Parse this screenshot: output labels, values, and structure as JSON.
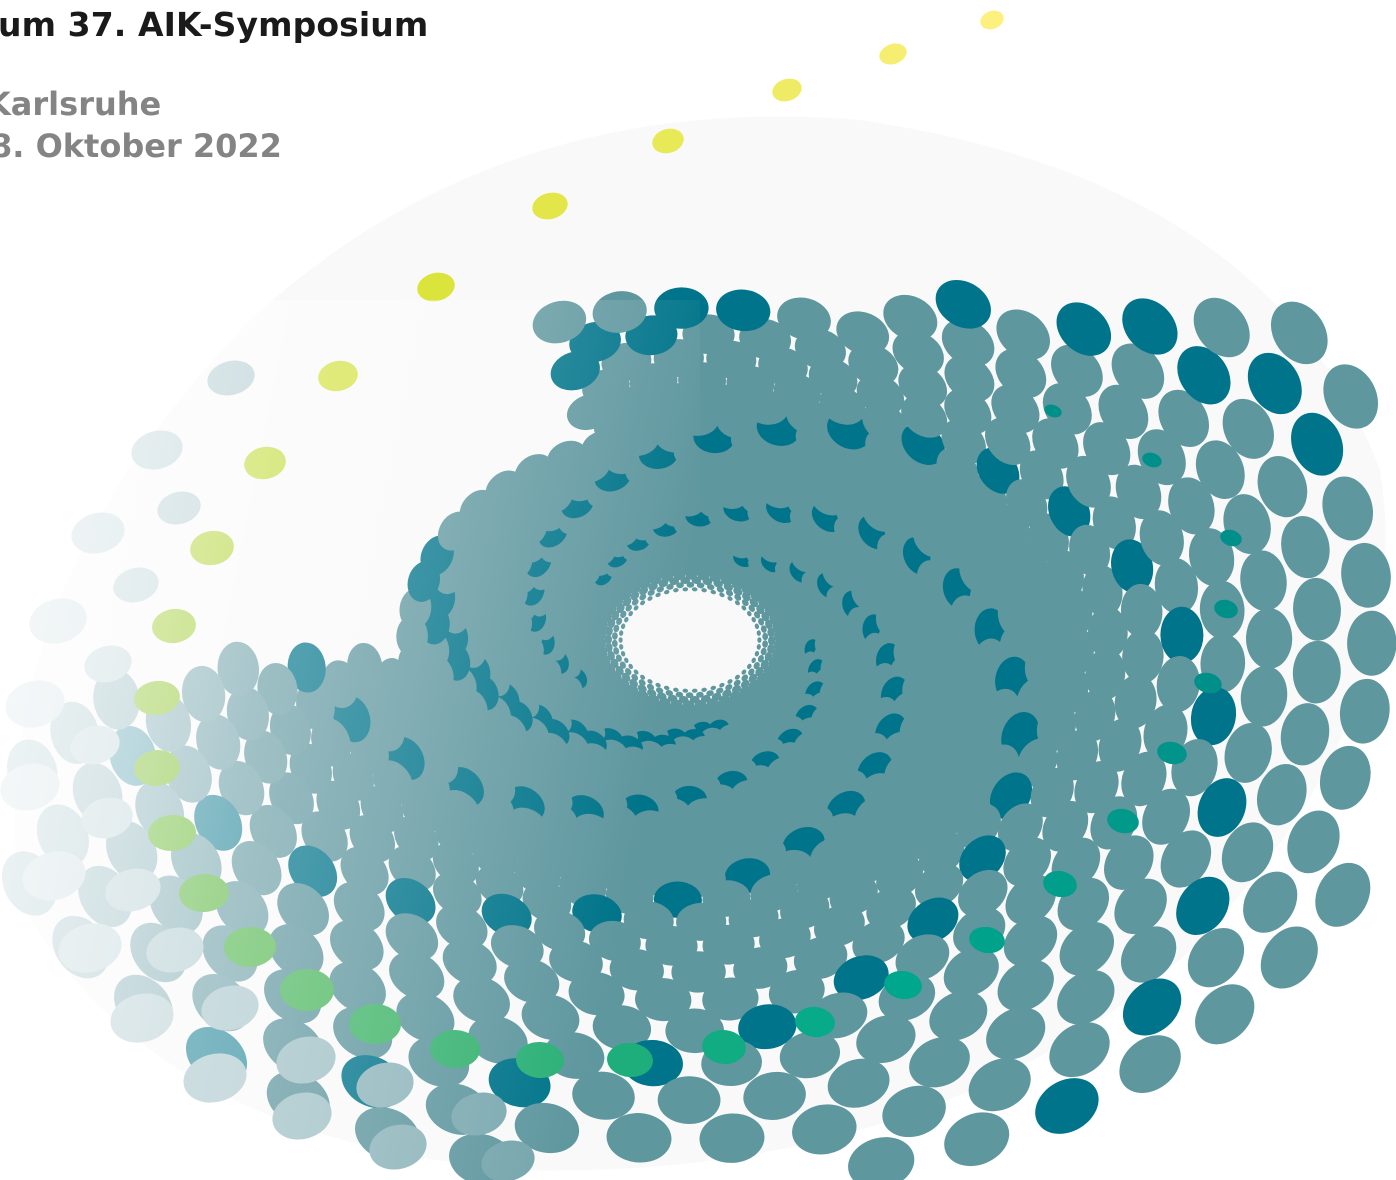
{
  "header": {
    "title": "um 37. AIK-Symposium",
    "location": "Karlsruhe",
    "date": "8. Oktober 2022"
  },
  "palette": {
    "backdrop": "#f9f9f9",
    "title_color": "#1a1a1a",
    "subtitle_color": "#848485",
    "accent_gradient": [
      "#fdf07f",
      "#d8e335",
      "#8fc747",
      "#3fb46b",
      "#00a98c",
      "#009089"
    ],
    "dot_teal": "#5f979f",
    "dot_dark_teal": "#00748a",
    "dot_fade": "#dfe9ec"
  }
}
